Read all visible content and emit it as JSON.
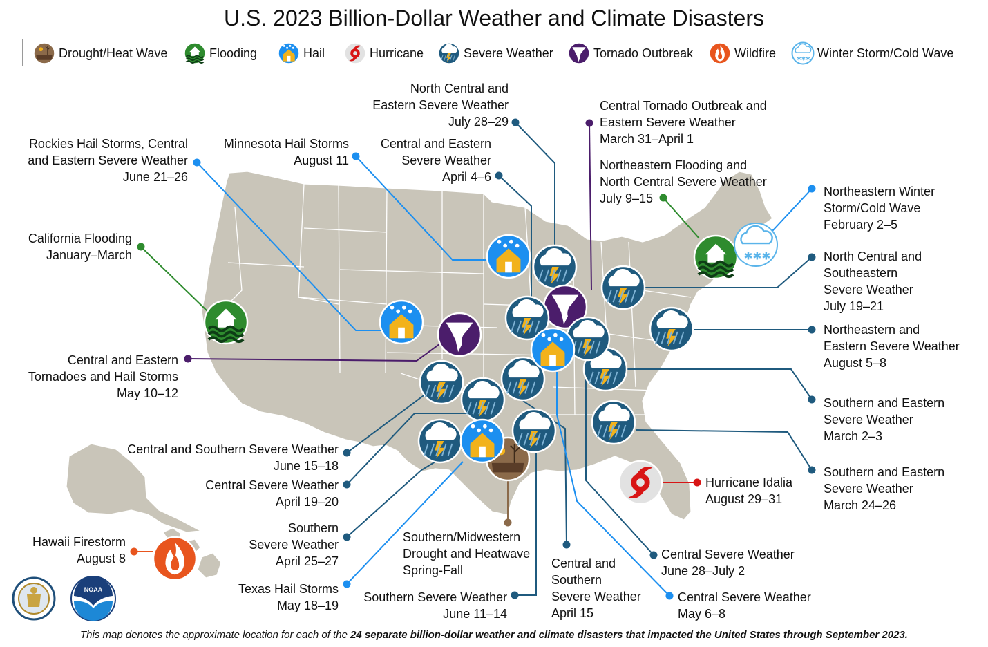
{
  "title": "U.S. 2023 Billion-Dollar Weather and Climate Disasters",
  "colors": {
    "land": "#c9c5b9",
    "state_border": "#ffffff",
    "severe": "#1f5a7e",
    "hail": "#1c8ff0",
    "tornado": "#4b1d6b",
    "flooding": "#2e8b2e",
    "hurricane": "#d81515",
    "drought": "#8b6a4a",
    "wildfire": "#e8551e",
    "winter": "#5ab4ea"
  },
  "legend": [
    {
      "icon": "drought-icon",
      "label": "Drought/Heat Wave"
    },
    {
      "icon": "flooding-icon",
      "label": "Flooding"
    },
    {
      "icon": "hail-icon",
      "label": "Hail"
    },
    {
      "icon": "hurricane-icon",
      "label": "Hurricane"
    },
    {
      "icon": "severe-weather-icon",
      "label": "Severe Weather"
    },
    {
      "icon": "tornado-icon",
      "label": "Tornado Outbreak"
    },
    {
      "icon": "wildfire-icon",
      "label": "Wildfire"
    },
    {
      "icon": "winter-storm-icon",
      "label": "Winter Storm/Cold Wave"
    }
  ],
  "events": [
    {
      "type": "severe",
      "lines": [
        "North Central and",
        "Eastern Severe Weather",
        "July 28–29"
      ]
    },
    {
      "type": "tornado",
      "lines": [
        "Central Tornado Outbreak and",
        "Eastern Severe Weather",
        "March 31–April 1"
      ]
    },
    {
      "type": "hail",
      "lines": [
        "Rockies Hail Storms, Central",
        "and Eastern Severe Weather",
        "June 21–26"
      ]
    },
    {
      "type": "hail",
      "lines": [
        "Minnesota Hail Storms",
        "August 11"
      ]
    },
    {
      "type": "severe",
      "lines": [
        "Central and Eastern",
        "Severe Weather",
        "April 4–6"
      ]
    },
    {
      "type": "flooding",
      "lines": [
        "Northeastern Flooding and",
        "North Central Severe Weather",
        "July 9–15"
      ]
    },
    {
      "type": "winter",
      "lines": [
        "Northeastern Winter",
        "Storm/Cold Wave",
        "February 2–5"
      ]
    },
    {
      "type": "flooding",
      "lines": [
        "California Flooding",
        "January–March"
      ]
    },
    {
      "type": "severe",
      "lines": [
        "North Central and",
        "Southeastern",
        "Severe Weather",
        "July 19–21"
      ]
    },
    {
      "type": "severe",
      "lines": [
        "Northeastern and",
        "Eastern Severe Weather",
        "August 5–8"
      ]
    },
    {
      "type": "tornado",
      "lines": [
        "Central and Eastern",
        "Tornadoes and Hail Storms",
        "May 10–12"
      ]
    },
    {
      "type": "severe",
      "lines": [
        "Southern and Eastern",
        "Severe Weather",
        "March 2–3"
      ]
    },
    {
      "type": "severe",
      "lines": [
        "Central and Southern Severe Weather",
        "June 15–18"
      ]
    },
    {
      "type": "severe",
      "lines": [
        "Southern and Eastern",
        "Severe Weather",
        "March 24–26"
      ]
    },
    {
      "type": "severe",
      "lines": [
        "Central Severe Weather",
        "April 19–20"
      ]
    },
    {
      "type": "hurricane",
      "lines": [
        "Hurricane Idalia",
        "August 29–31"
      ]
    },
    {
      "type": "severe",
      "lines": [
        "Southern",
        "Severe Weather",
        "April 25–27"
      ]
    },
    {
      "type": "drought",
      "lines": [
        "Southern/Midwestern",
        "Drought and Heatwave",
        "Spring-Fall"
      ]
    },
    {
      "type": "wildfire",
      "lines": [
        "Hawaii Firestorm",
        "August 8"
      ]
    },
    {
      "type": "severe",
      "lines": [
        "Central Severe Weather",
        "June 28–July 2"
      ]
    },
    {
      "type": "severe",
      "lines": [
        "Central and",
        "Southern",
        "Severe Weather",
        "April 15"
      ]
    },
    {
      "type": "hail",
      "lines": [
        "Texas Hail Storms",
        "May 18–19"
      ]
    },
    {
      "type": "severe",
      "lines": [
        "Southern Severe Weather",
        "June 11–14"
      ]
    },
    {
      "type": "hail",
      "lines": [
        "Central Severe Weather",
        "May 6–8"
      ]
    }
  ],
  "footer": {
    "prefix": "This map denotes the approximate location for each of the ",
    "bold": "24 separate billion-dollar weather and climate disasters that impacted the United States through September 2023.",
    "suffix": ""
  },
  "logos": {
    "noaa_text": "NOAA"
  }
}
